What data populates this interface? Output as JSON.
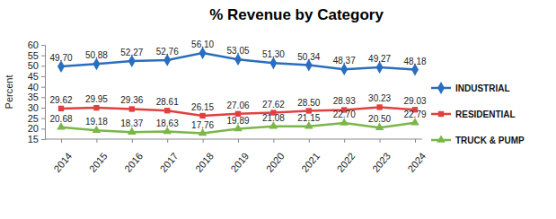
{
  "chart_data": {
    "type": "line",
    "title": "% Revenue by Category",
    "y_label": "Percent",
    "categories": [
      "2014",
      "2015",
      "2016",
      "2017",
      "2018",
      "2019",
      "2020",
      "2021",
      "2022",
      "2023",
      "2024"
    ],
    "series": [
      {
        "name": "INDUSTRIAL",
        "color": "#2a6ebf",
        "marker": "diamond",
        "values": [
          49.7,
          50.88,
          52.27,
          52.76,
          56.1,
          53.05,
          51.3,
          50.34,
          48.37,
          49.27,
          48.18
        ],
        "value_labels": [
          "49.70",
          "50.88",
          "52.27",
          "52.76",
          "56.10",
          "53.05",
          "51.30",
          "50.34",
          "48.37",
          "49.27",
          "48.18"
        ]
      },
      {
        "name": "RESIDENTIAL",
        "color": "#e0403f",
        "marker": "square",
        "values": [
          29.62,
          29.95,
          29.36,
          28.61,
          26.15,
          27.06,
          27.62,
          28.5,
          28.93,
          30.23,
          29.03
        ],
        "value_labels": [
          "29.62",
          "29.95",
          "29.36",
          "28.61",
          "26.15",
          "27.06",
          "27.62",
          "28.50",
          "28.93",
          "30.23",
          "29.03"
        ]
      },
      {
        "name": "TRUCK & PUMP",
        "color": "#7ab648",
        "marker": "triangle",
        "values": [
          20.68,
          19.18,
          18.37,
          18.63,
          17.76,
          19.89,
          21.08,
          21.15,
          22.7,
          20.5,
          22.79
        ],
        "value_labels": [
          "20.68",
          "19.18",
          "18.37",
          "18.63",
          "17.76",
          "19.89",
          "21.08",
          "21.15",
          "22.70",
          "20.50",
          "22.79"
        ]
      }
    ],
    "ylim": [
      15,
      60
    ],
    "yticks": [
      15,
      20,
      25,
      30,
      35,
      40,
      45,
      50,
      55,
      60
    ],
    "grid": false,
    "legend": "right",
    "data_labels": true
  }
}
